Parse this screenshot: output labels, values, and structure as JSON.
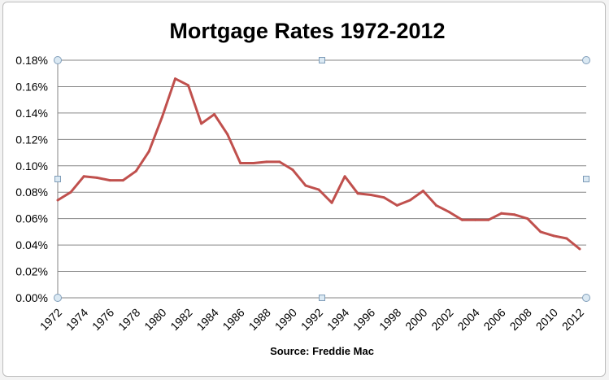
{
  "chart_data": {
    "type": "line",
    "title": "Mortgage Rates 1972-2012",
    "xlabel": "Source:  Freddie Mac",
    "ylabel": "",
    "ylim": [
      0,
      0.18
    ],
    "y_ticks": [
      "0.00%",
      "0.02%",
      "0.04%",
      "0.06%",
      "0.08%",
      "0.10%",
      "0.12%",
      "0.14%",
      "0.16%",
      "0.18%"
    ],
    "y_tick_values": [
      0,
      0.02,
      0.04,
      0.06,
      0.08,
      0.1,
      0.12,
      0.14,
      0.16,
      0.18
    ],
    "x_tick_labels": [
      "1972",
      "1974",
      "1976",
      "1978",
      "1980",
      "1982",
      "1984",
      "1986",
      "1988",
      "1990",
      "1992",
      "1994",
      "1996",
      "1998",
      "2000",
      "2002",
      "2004",
      "2006",
      "2008",
      "2010",
      "2012"
    ],
    "grid": true,
    "legend": "none",
    "series": [
      {
        "name": "Mortgage Rate",
        "color": "#c0504d",
        "x": [
          1972,
          1973,
          1974,
          1975,
          1976,
          1977,
          1978,
          1979,
          1980,
          1981,
          1982,
          1983,
          1984,
          1985,
          1986,
          1987,
          1988,
          1989,
          1990,
          1991,
          1992,
          1993,
          1994,
          1995,
          1996,
          1997,
          1998,
          1999,
          2000,
          2001,
          2002,
          2003,
          2004,
          2005,
          2006,
          2007,
          2008,
          2009,
          2010,
          2011,
          2012
        ],
        "values": [
          0.074,
          0.08,
          0.092,
          0.091,
          0.089,
          0.089,
          0.096,
          0.111,
          0.137,
          0.166,
          0.161,
          0.132,
          0.139,
          0.124,
          0.102,
          0.102,
          0.103,
          0.103,
          0.097,
          0.085,
          0.082,
          0.072,
          0.092,
          0.079,
          0.078,
          0.076,
          0.07,
          0.074,
          0.081,
          0.07,
          0.065,
          0.059,
          0.059,
          0.059,
          0.064,
          0.063,
          0.06,
          0.05,
          0.047,
          0.045,
          0.037
        ]
      }
    ]
  }
}
